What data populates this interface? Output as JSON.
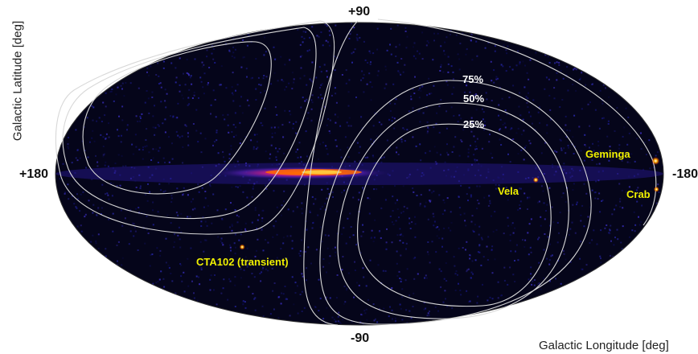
{
  "axes": {
    "ylabel": "Galactic Latitude [deg]",
    "xlabel": "Galactic Longitude [deg]",
    "top_tick": "+90",
    "bottom_tick": "-90",
    "left_tick": "+180",
    "right_tick": "-180"
  },
  "contours": {
    "labels": [
      "75%",
      "50%",
      "25%"
    ]
  },
  "sources": [
    {
      "name": "Geminga",
      "l": -175,
      "b": 5
    },
    {
      "name": "Crab",
      "l": -176,
      "b": -6
    },
    {
      "name": "Vela",
      "l": -97,
      "b": -3
    },
    {
      "name": "CTA102 (transient)",
      "l": 77,
      "b": -38
    }
  ],
  "colors": {
    "sky": "#05051a",
    "contour": "#d8d8d8",
    "label": "#f0f000",
    "plane_hot": "#ff5a00",
    "plane_mid": "#c000a0",
    "plane_cool": "#3a1aa8"
  }
}
